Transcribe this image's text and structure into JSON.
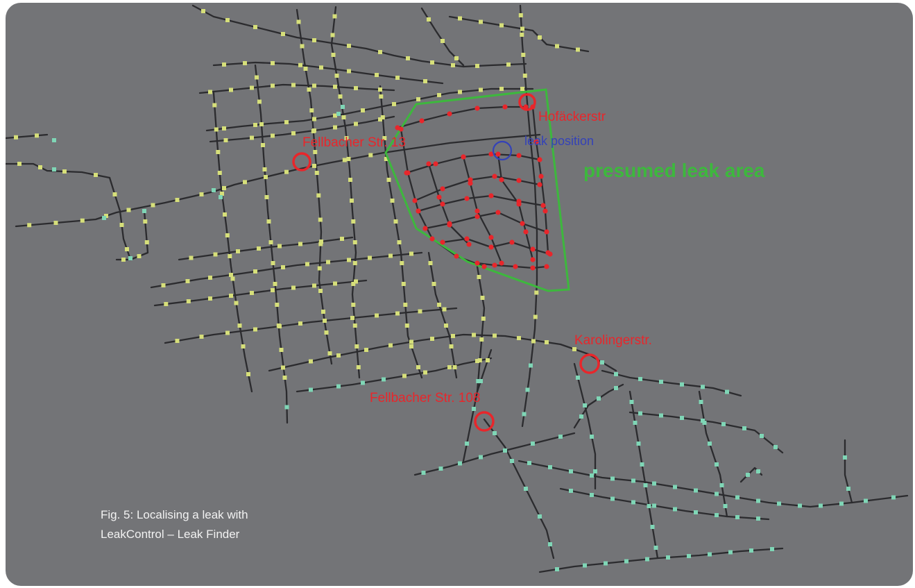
{
  "labels": {
    "hofaecker": "Hofäckerstr",
    "fellbacher13": "Fellbacher Str. 13",
    "leak_position": "leak position",
    "presumed_area": "presumed leak area",
    "karolinger": "Karolingerstr.",
    "fellbacher108": "Fellbacher Str. 108"
  },
  "caption": {
    "line1": "Fig. 5: Localising a leak with",
    "line2": "LeakControl – Leak Finder"
  },
  "colors": {
    "background": "#737477",
    "pipe": "#2b2b2e",
    "node_yellow": "#d6df7a",
    "node_teal": "#7fd6b6",
    "node_red": "#e8262b",
    "marker_red": "#e8262b",
    "leak_blue": "#3442b8",
    "area_green": "#3db83d",
    "caption_text": "#f2f2f2"
  }
}
